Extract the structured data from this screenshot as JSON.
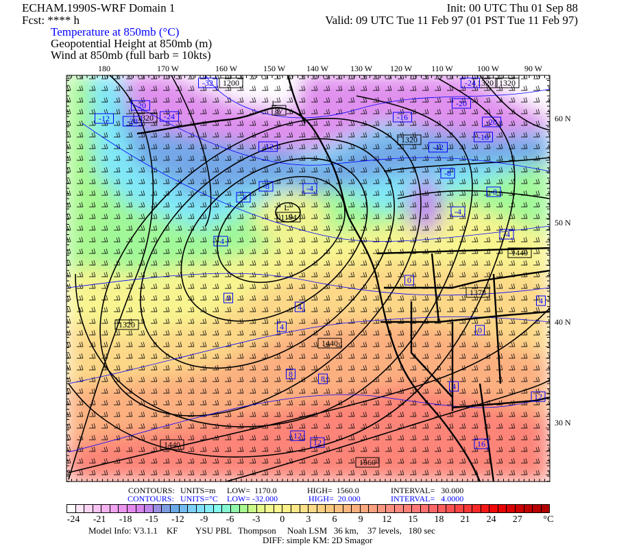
{
  "header": {
    "title": "ECHAM.1990S-WRF Domain 1",
    "init": "Init: 00 UTC Thu 01 Sep 88",
    "fcst": "Fcst: **** h",
    "valid": "Valid: 09 UTC Tue 11 Feb 97 (01 PST Tue 11 Feb 97)",
    "fields": [
      {
        "text": "Temperature at 850mb (°C)",
        "color": "#0000ff"
      },
      {
        "text": "Geopotential Height at 850mb (m)",
        "color": "#000000"
      },
      {
        "text": "Wind at 850mb (full barb = 10kts)",
        "color": "#000000"
      }
    ]
  },
  "map": {
    "longitude_labels": [
      "180",
      "170 W",
      "160 W",
      "150 W",
      "140 W",
      "130 W",
      "120 W",
      "110 W",
      "100 W",
      "90 W"
    ],
    "latitude_labels": [
      "60 N",
      "50 N",
      "40 N",
      "30 N"
    ],
    "height_labels": [
      "1200",
      "1320",
      "L",
      "1194",
      "L",
      "87",
      "1320",
      "1320",
      "1320",
      "1440",
      "1378",
      "1320",
      "1440",
      "1440",
      "1560"
    ],
    "temperature_labels": [
      "-32",
      "-20",
      "-12",
      "-24",
      "-28",
      "-12",
      "-8",
      "-8",
      "-4",
      "-4",
      "-24",
      "-16",
      "-20",
      "-20",
      "-16",
      "-12",
      "-8",
      "-8",
      "-4",
      "-4",
      "0",
      "4",
      "4",
      "8",
      "8",
      "12",
      "12",
      "4",
      "0",
      "0",
      "16",
      "12",
      "4"
    ],
    "height_contour_color": "#000000",
    "temperature_contour_color": "#0000ff"
  },
  "contours": {
    "height": {
      "label": "CONTOURS:",
      "units": "UNITS=m",
      "low": "LOW=  1170.0",
      "high": "HIGH=  1560.0",
      "interval": "INTERVAL=   30.000"
    },
    "temperature": {
      "label": "CONTOURS:",
      "units": "UNITS=°C",
      "low": "LOW= -32.000",
      "high": "HIGH=  20.000",
      "interval": "INTERVAL=   4.0000"
    }
  },
  "colorbar": {
    "ticks": [
      "-24",
      "-21",
      "-18",
      "-15",
      "-12",
      "-9",
      "-6",
      "-3",
      "0",
      "3",
      "6",
      "9",
      "12",
      "15",
      "18",
      "21",
      "24",
      "27"
    ],
    "unit": "°C",
    "colors": [
      "#ffffff",
      "#fde6f8",
      "#fbd4f4",
      "#f8c2f2",
      "#f4b2f0",
      "#f0a4ee",
      "#ea96ee",
      "#e48aee",
      "#d884ee",
      "#c084ea",
      "#9a8ee0",
      "#7e9ce0",
      "#6aa8e8",
      "#74bcf0",
      "#7ed0f6",
      "#82e0fa",
      "#84eef8",
      "#86f8ee",
      "#84f8d0",
      "#90f8a8",
      "#a8f890",
      "#c8f888",
      "#e4f888",
      "#f4f890",
      "#fcf890",
      "#fcf088",
      "#fce888",
      "#fce088",
      "#fcd888",
      "#fcd080",
      "#fcc880",
      "#fcc080",
      "#fcb880",
      "#fcb080",
      "#fca880",
      "#fca080",
      "#fc9880",
      "#fc9080",
      "#fc8880",
      "#fc8078",
      "#fc7878",
      "#fc7070",
      "#fc6868",
      "#fc5c5c",
      "#fc5050",
      "#fc4444",
      "#f83838",
      "#f82828",
      "#f81818",
      "#f00808",
      "#e80000",
      "#d80000",
      "#cc0000",
      "#c00000",
      "#b80000",
      "#b00000"
    ]
  },
  "footer": {
    "model_info": "Model Info: V3.1.1    KF        YSU PBL   Thompson     Noah LSM   36 km,    37 levels,   180 sec",
    "diff": "DIFF: simple KM: 2D Smagor"
  }
}
